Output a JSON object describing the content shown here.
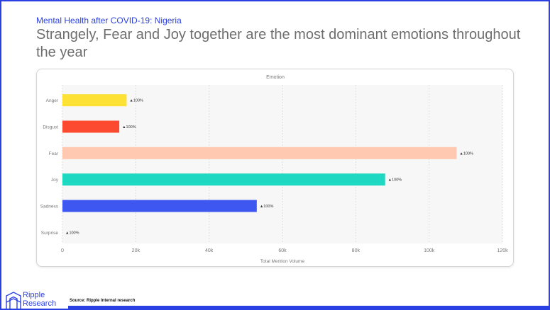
{
  "header": {
    "subtitle": "Mental Health after COVID-19: Nigeria",
    "headline": "Strangely, Fear and Joy together are the most dominant emotions throughout the year"
  },
  "footer": {
    "source": "Source: Ripple Internal research",
    "logo_line1": "Ripple",
    "logo_line2": "Research"
  },
  "colors": {
    "brand": "#2b40e3",
    "headline": "#6e6e6e"
  },
  "chart_data": {
    "type": "bar",
    "orientation": "horizontal",
    "title": "Emotion",
    "xlabel": "Total Mention Volume",
    "ylabel": "",
    "xlim": [
      0,
      120000
    ],
    "x_ticks": [
      "0",
      "20k",
      "40k",
      "60k",
      "80k",
      "100k",
      "120k"
    ],
    "grid": true,
    "categories": [
      "Anger",
      "Disgust",
      "Fear",
      "Joy",
      "Sadness",
      "Surprise"
    ],
    "values": [
      17500,
      15500,
      107500,
      88000,
      53000,
      0
    ],
    "data_labels": [
      "▲100%",
      "▲100%",
      "▲100%",
      "▲100%",
      "▲100%",
      "▲100%"
    ],
    "bar_colors": [
      "#fde135",
      "#fb4a2f",
      "#ffc8b0",
      "#1fd8c1",
      "#3e57f0",
      "#cccccc"
    ]
  }
}
